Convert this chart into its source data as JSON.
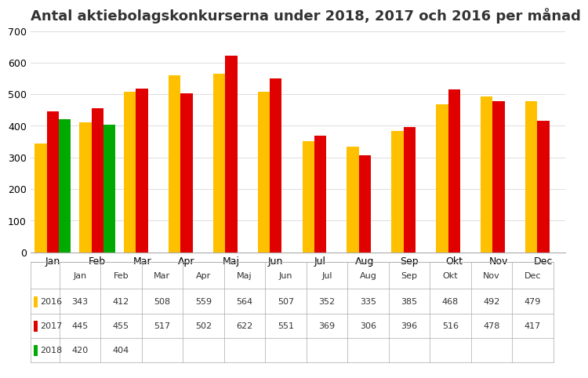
{
  "title": "Antal aktiebolagskonkurserna under 2018, 2017 och 2016 per månad",
  "months": [
    "Jan",
    "Feb",
    "Mar",
    "Apr",
    "Maj",
    "Jun",
    "Jul",
    "Aug",
    "Sep",
    "Okt",
    "Nov",
    "Dec"
  ],
  "series": {
    "2016": [
      343,
      412,
      508,
      559,
      564,
      507,
      352,
      335,
      385,
      468,
      492,
      479
    ],
    "2017": [
      445,
      455,
      517,
      502,
      622,
      551,
      369,
      306,
      396,
      516,
      478,
      417
    ],
    "2018": [
      420,
      404,
      null,
      null,
      null,
      null,
      null,
      null,
      null,
      null,
      null,
      null
    ]
  },
  "colors": {
    "2016": "#FFC000",
    "2017": "#E00000",
    "2018": "#00AA00"
  },
  "ylim": [
    0,
    700
  ],
  "yticks": [
    0,
    100,
    200,
    300,
    400,
    500,
    600,
    700
  ],
  "title_fontsize": 13,
  "table_fontsize": 8,
  "background_color": "#FFFFFF"
}
